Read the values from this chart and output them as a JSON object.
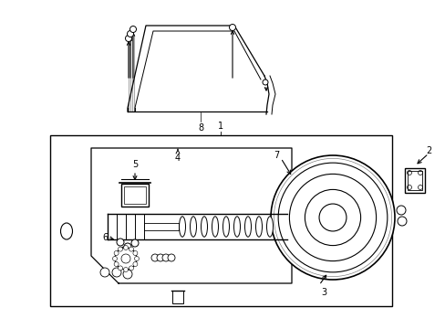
{
  "bg_color": "#ffffff",
  "lc": "#000000",
  "figsize": [
    4.89,
    3.6
  ],
  "dpi": 100,
  "title_fontsize": 7
}
